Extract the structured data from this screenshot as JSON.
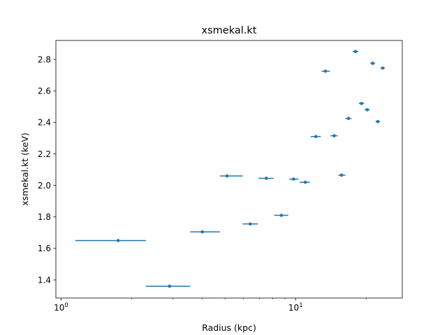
{
  "chart_data": {
    "type": "scatter",
    "title": "xsmekal.kt",
    "xlabel": "Radius (kpc)",
    "ylabel": "xsmekal.kt (keV)",
    "xscale": "log",
    "xlim": [
      0.95,
      28.5
    ],
    "ylim": [
      1.285,
      2.92
    ],
    "x_ticks": [
      {
        "value": 1,
        "label": "10^0"
      },
      {
        "value": 10,
        "label": "10^1"
      }
    ],
    "y_ticks": [
      1.4,
      1.6,
      1.8,
      2.0,
      2.2,
      2.4,
      2.6,
      2.8
    ],
    "y_tick_labels": [
      "1.4",
      "1.6",
      "1.8",
      "2.0",
      "2.2",
      "2.4",
      "2.6",
      "2.8"
    ],
    "grid": false,
    "legend": "none",
    "color": "#1f77b4",
    "series": [
      {
        "points": [
          {
            "x": 1.75,
            "xlo": 1.15,
            "xhi": 2.3,
            "y": 1.65
          },
          {
            "x": 2.9,
            "xlo": 2.3,
            "xhi": 3.55,
            "y": 1.36
          },
          {
            "x": 4.0,
            "xlo": 3.55,
            "xhi": 4.75,
            "y": 1.705
          },
          {
            "x": 5.1,
            "xlo": 4.75,
            "xhi": 5.95,
            "y": 2.06
          },
          {
            "x": 6.4,
            "xlo": 5.95,
            "xhi": 6.9,
            "y": 1.755
          },
          {
            "x": 7.5,
            "xlo": 6.95,
            "xhi": 8.05,
            "y": 2.045
          },
          {
            "x": 8.7,
            "xlo": 8.1,
            "xhi": 9.3,
            "y": 1.81
          },
          {
            "x": 9.8,
            "xlo": 9.4,
            "xhi": 10.3,
            "y": 2.04
          },
          {
            "x": 11.0,
            "xlo": 10.4,
            "xhi": 11.5,
            "y": 2.02
          },
          {
            "x": 12.2,
            "xlo": 11.6,
            "xhi": 12.8,
            "y": 2.31
          },
          {
            "x": 13.4,
            "xlo": 12.9,
            "xhi": 14.0,
            "y": 2.725
          },
          {
            "x": 14.6,
            "xlo": 14.1,
            "xhi": 15.1,
            "y": 2.315
          },
          {
            "x": 15.7,
            "xlo": 15.2,
            "xhi": 16.3,
            "y": 2.065
          },
          {
            "x": 16.8,
            "xlo": 16.3,
            "xhi": 17.3,
            "y": 2.425
          },
          {
            "x": 18.0,
            "xlo": 17.5,
            "xhi": 18.5,
            "y": 2.85
          },
          {
            "x": 19.1,
            "xlo": 18.6,
            "xhi": 19.6,
            "y": 2.52
          },
          {
            "x": 20.2,
            "xlo": 19.7,
            "xhi": 20.7,
            "y": 2.48
          },
          {
            "x": 21.3,
            "xlo": 20.8,
            "xhi": 21.8,
            "y": 2.775
          },
          {
            "x": 22.4,
            "xlo": 21.9,
            "xhi": 22.9,
            "y": 2.405
          },
          {
            "x": 23.5,
            "xlo": 23.0,
            "xhi": 24.0,
            "y": 2.745
          }
        ]
      }
    ]
  }
}
